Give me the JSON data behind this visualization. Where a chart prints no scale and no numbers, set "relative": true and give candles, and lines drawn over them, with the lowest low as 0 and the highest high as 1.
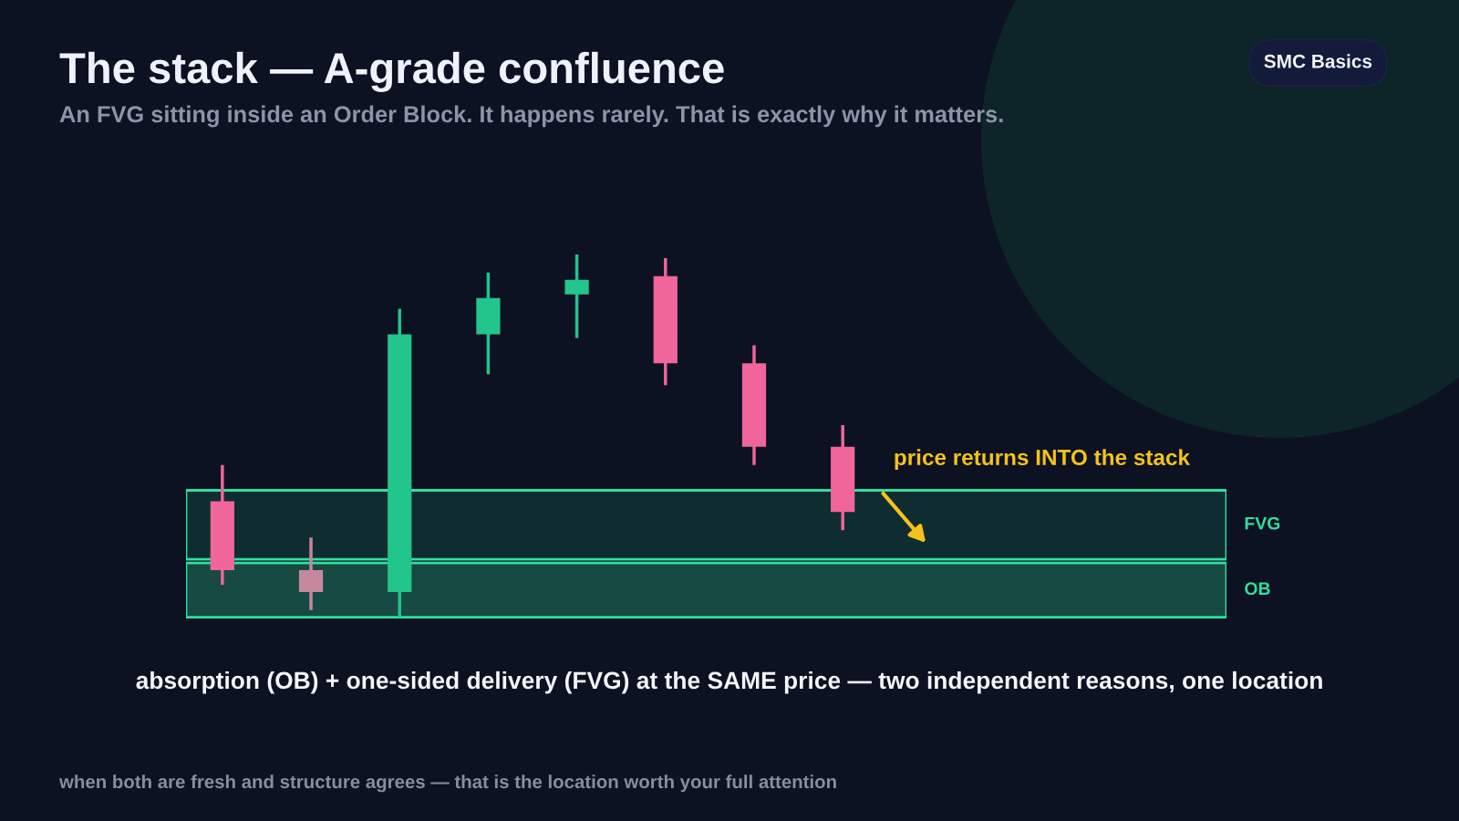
{
  "chart_data": {
    "type": "candlestick",
    "title": "The stack — A-grade confluence",
    "subtitle": "An FVG sitting inside an Order Block. It happens rarely. That is exactly why it matters.",
    "categories": [
      null,
      null,
      null,
      null,
      null,
      null,
      null,
      null
    ],
    "ohlc": [
      [
        0.32,
        0.42,
        0.09,
        0.13
      ],
      [
        0.13,
        0.22,
        0.02,
        0.07
      ],
      [
        0.07,
        0.85,
        0.0,
        0.78
      ],
      [
        0.78,
        0.95,
        0.67,
        0.88
      ],
      [
        0.89,
        1.0,
        0.77,
        0.93
      ],
      [
        0.94,
        0.99,
        0.64,
        0.7
      ],
      [
        0.7,
        0.75,
        0.42,
        0.47
      ],
      [
        0.47,
        0.53,
        0.24,
        0.29
      ]
    ],
    "colors": [
      "#f0669a",
      "#c4899c",
      "#22c58b",
      "#22c58b",
      "#22c58b",
      "#f0669a",
      "#f0669a",
      "#f0669a"
    ],
    "relative": true,
    "tick_labels": false,
    "bands": [
      {
        "axis": "y",
        "from": 0.16,
        "to": 0.35,
        "label": "FVG",
        "color": "#0f2d30"
      },
      {
        "axis": "y",
        "from": 0.0,
        "to": 0.15,
        "label": "OB",
        "color": "#174a42"
      }
    ],
    "annotations": [
      "price returns INTO the stack",
      "absorption (OB) + one-sided delivery (FVG) at the SAME price — two independent reasons, one location",
      "when both are fresh and structure agrees — that is the location worth your full attention",
      "SMC Basics"
    ]
  }
}
